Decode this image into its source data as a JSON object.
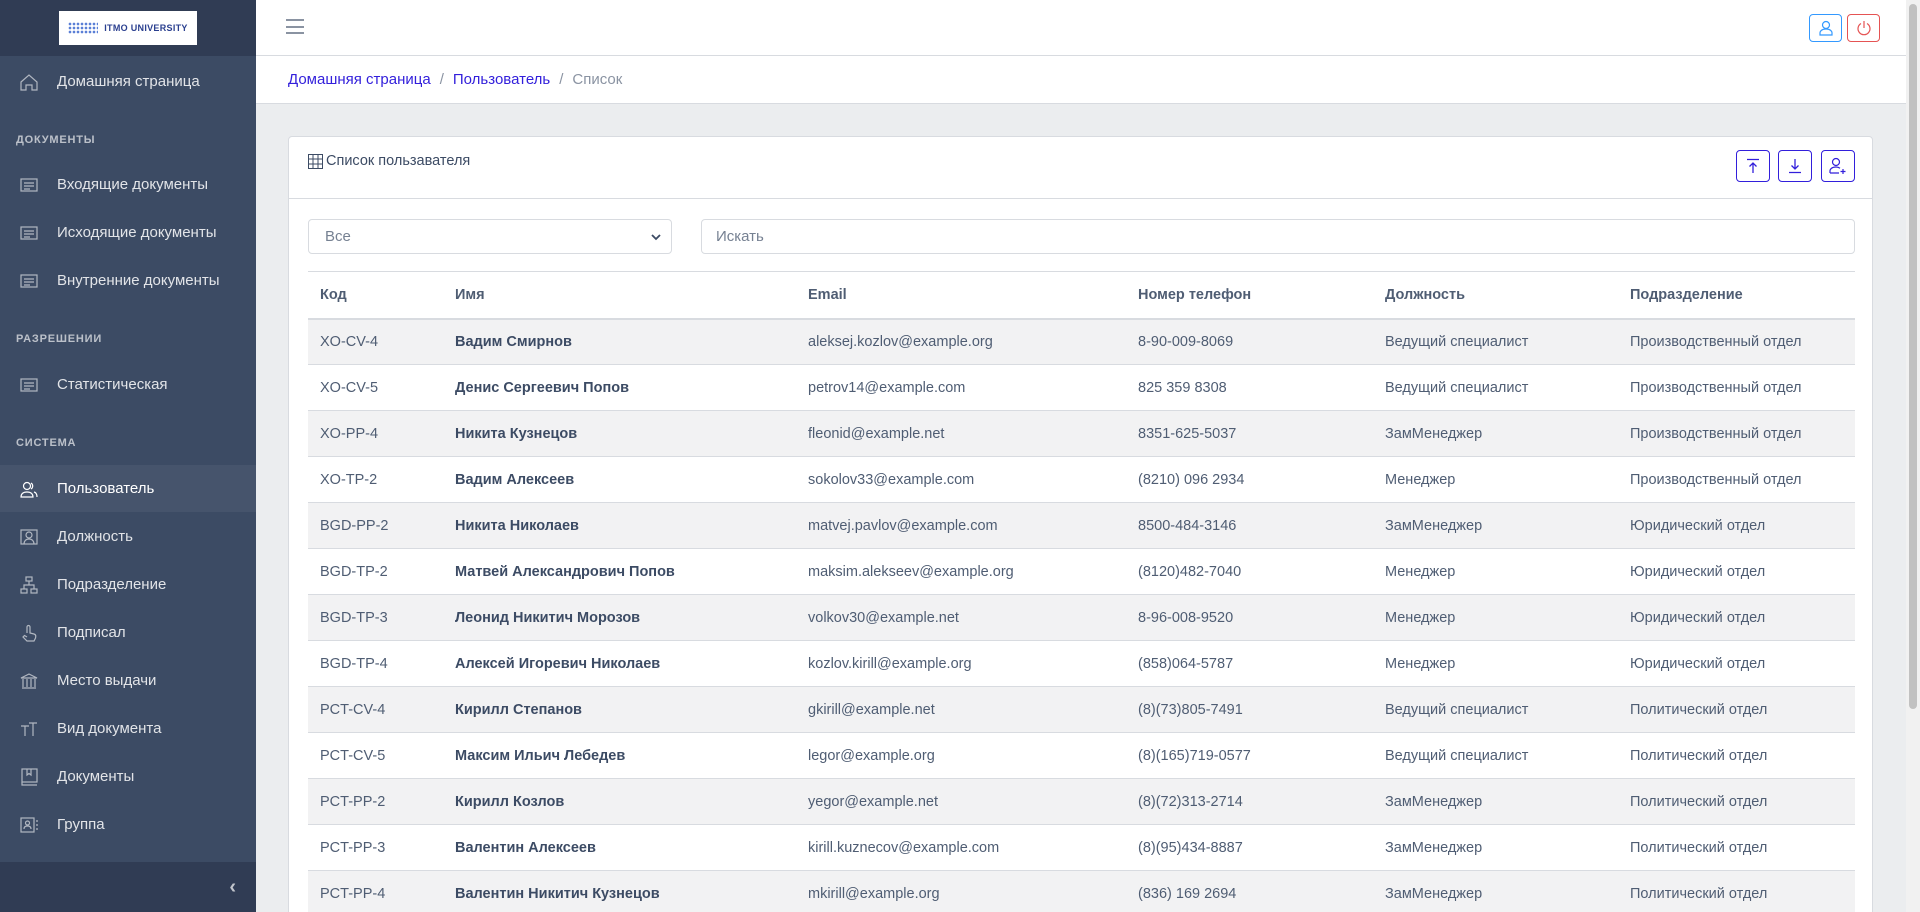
{
  "brand": {
    "logo_text": "ITMO UNIVERSITY"
  },
  "sidebar": {
    "home": "Домашняя страница",
    "sections": [
      {
        "title": "ДОКУМЕНТЫ",
        "items": [
          "Входящие документы",
          "Исходящие документы",
          "Внутренние документы"
        ]
      },
      {
        "title": "РАЗРЕШЕНИИ",
        "items": [
          "Статистическая"
        ]
      },
      {
        "title": "СИСТЕМА",
        "items": [
          "Пользователь",
          "Должность",
          "Подразделение",
          "Подписал",
          "Место выдачи",
          "Вид документа",
          "Документы",
          "Группа"
        ]
      }
    ],
    "active": "Пользователь",
    "collapse_icon": "chevron-left"
  },
  "breadcrumb": [
    "Домашняя страница",
    "Пользователь",
    "Список"
  ],
  "card": {
    "title": "Список пользавателя",
    "filter": {
      "selected": "Все"
    },
    "search": {
      "placeholder": "Искать"
    },
    "buttons": [
      "upload",
      "download",
      "add-user"
    ]
  },
  "colors": {
    "primary": "#321fdb",
    "info": "#3399ff",
    "danger": "#e55353",
    "sidebar": "#3c4b64"
  },
  "table": {
    "columns": [
      "Код",
      "Имя",
      "Email",
      "Номер телефон",
      "Должность",
      "Подразделение"
    ],
    "rows": [
      [
        "XO-CV-4",
        "Вадим Смирнов",
        "aleksej.kozlov@example.org",
        "8-90-009-8069",
        "Ведущий специалист",
        "Производственный отдел"
      ],
      [
        "XO-CV-5",
        "Денис Сергеевич Попов",
        "petrov14@example.com",
        "825 359 8308",
        "Ведущий специалист",
        "Производственный отдел"
      ],
      [
        "XO-PP-4",
        "Никита Кузнецов",
        "fleonid@example.net",
        "8351-625-5037",
        "ЗамМенеджер",
        "Производственный отдел"
      ],
      [
        "XO-TP-2",
        "Вадим Алексеев",
        "sokolov33@example.com",
        "(8210) 096 2934",
        "Менеджер",
        "Производственный отдел"
      ],
      [
        "BGD-PP-2",
        "Никита Николаев",
        "matvej.pavlov@example.com",
        "8500-484-3146",
        "ЗамМенеджер",
        "Юридический отдел"
      ],
      [
        "BGD-TP-2",
        "Матвей Александрович Попов",
        "maksim.alekseev@example.org",
        "(8120)482-7040",
        "Менеджер",
        "Юридический отдел"
      ],
      [
        "BGD-TP-3",
        "Леонид Никитич Морозов",
        "volkov30@example.net",
        "8-96-008-9520",
        "Менеджер",
        "Юридический отдел"
      ],
      [
        "BGD-TP-4",
        "Алексей Игоревич Николаев",
        "kozlov.kirill@example.org",
        "(858)064-5787",
        "Менеджер",
        "Юридический отдел"
      ],
      [
        "PCT-CV-4",
        "Кирилл Степанов",
        "gkirill@example.net",
        "(8)(73)805-7491",
        "Ведущий специалист",
        "Политический отдел"
      ],
      [
        "PCT-CV-5",
        "Максим Ильич Лебедев",
        "legor@example.org",
        "(8)(165)719-0577",
        "Ведущий специалист",
        "Политический отдел"
      ],
      [
        "PCT-PP-2",
        "Кирилл Козлов",
        "yegor@example.net",
        "(8)(72)313-2714",
        "ЗамМенеджер",
        "Политический отдел"
      ],
      [
        "PCT-PP-3",
        "Валентин Алексеев",
        "kirill.kuznecov@example.com",
        "(8)(95)434-8887",
        "ЗамМенеджер",
        "Политический отдел"
      ],
      [
        "PCT-PP-4",
        "Валентин Никитич Кузнецов",
        "mkirill@example.org",
        "(836) 169 2694",
        "ЗамМенеджер",
        "Политический отдел"
      ]
    ]
  }
}
